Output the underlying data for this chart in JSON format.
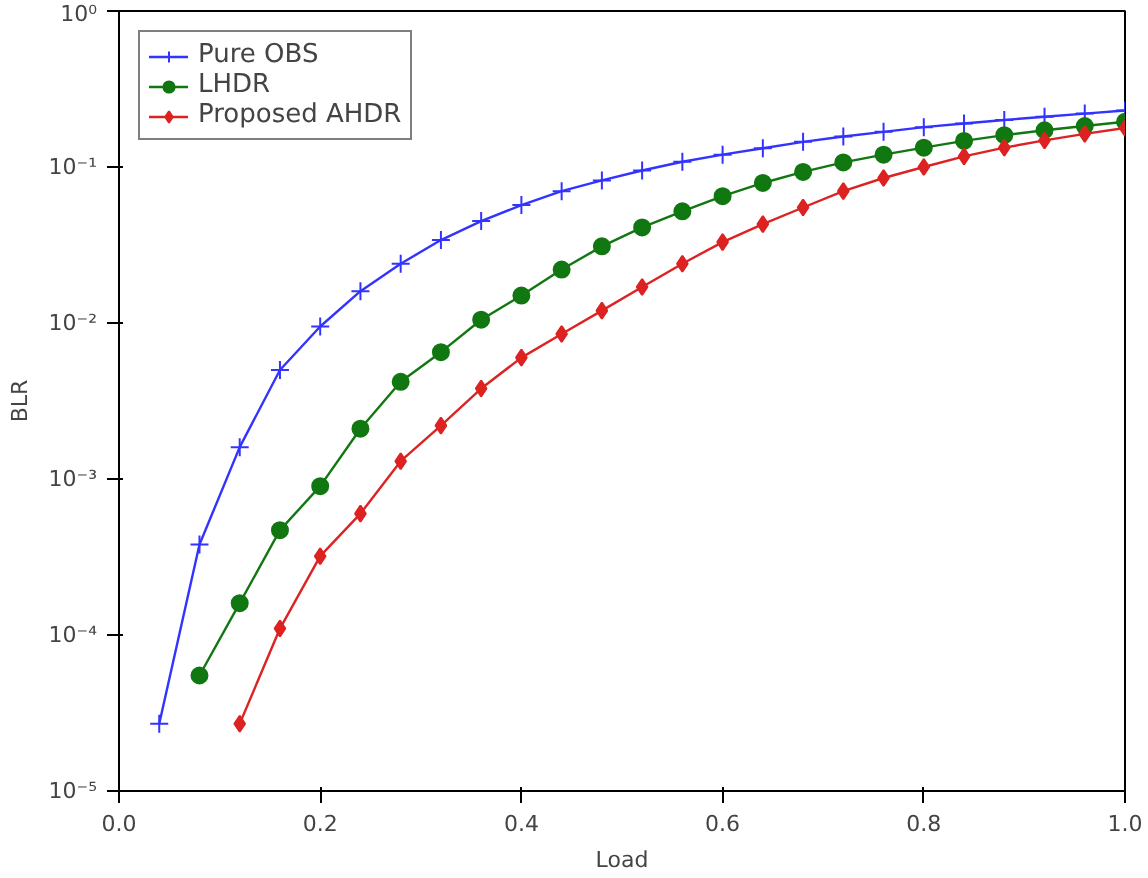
{
  "chart_data": {
    "type": "line",
    "xlabel": "Load",
    "ylabel": "BLR",
    "log": "y",
    "grid": false,
    "legend": "top left",
    "line_style": "solid",
    "xlim": [
      0.0,
      1.0
    ],
    "xticks": [
      {
        "value": 0,
        "label": "0.0"
      },
      0.2,
      0.4,
      0.6,
      0.8,
      {
        "value": 1,
        "label": "1.0"
      }
    ],
    "ylim": [
      1e-05,
      1
    ],
    "yticks": [
      {
        "value": 1e-05,
        "label": "10⁻⁵"
      },
      {
        "value": 0.0001,
        "label": "10⁻⁴"
      },
      {
        "value": 0.001,
        "label": "10⁻³"
      },
      {
        "value": 0.01,
        "label": "10⁻²"
      },
      {
        "value": 0.1,
        "label": "10⁻¹"
      },
      {
        "value": 1,
        "label": "10⁰"
      }
    ],
    "series": [
      {
        "name": "Pure OBS",
        "color": "#3333ff",
        "marker": "cross",
        "x": [
          0.04,
          0.08,
          0.12,
          0.16,
          0.2,
          0.24,
          0.28,
          0.32,
          0.36,
          0.4,
          0.44,
          0.48,
          0.52,
          0.56,
          0.6,
          0.64,
          0.68,
          0.72,
          0.76,
          0.8,
          0.84,
          0.88,
          0.92,
          0.96,
          1.0
        ],
        "values": [
          2.7e-05,
          0.00038,
          0.0016,
          0.005,
          0.0095,
          0.016,
          0.024,
          0.034,
          0.045,
          0.057,
          0.07,
          0.082,
          0.095,
          0.108,
          0.12,
          0.132,
          0.145,
          0.157,
          0.168,
          0.18,
          0.19,
          0.2,
          0.21,
          0.22,
          0.23
        ]
      },
      {
        "name": "LHDR",
        "color": "#117711",
        "marker": "circle",
        "x": [
          0.08,
          0.12,
          0.16,
          0.2,
          0.24,
          0.28,
          0.32,
          0.36,
          0.4,
          0.44,
          0.48,
          0.52,
          0.56,
          0.6,
          0.64,
          0.68,
          0.72,
          0.76,
          0.8,
          0.84,
          0.88,
          0.92,
          0.96,
          1.0
        ],
        "values": [
          5.5e-05,
          0.00016,
          0.00047,
          0.0009,
          0.0021,
          0.0042,
          0.0065,
          0.0105,
          0.015,
          0.022,
          0.031,
          0.041,
          0.052,
          0.065,
          0.079,
          0.093,
          0.107,
          0.12,
          0.133,
          0.147,
          0.16,
          0.172,
          0.183,
          0.195
        ]
      },
      {
        "name": "Proposed AHDR",
        "color": "#dd2222",
        "marker": "diamond",
        "x": [
          0.12,
          0.16,
          0.2,
          0.24,
          0.28,
          0.32,
          0.36,
          0.4,
          0.44,
          0.48,
          0.52,
          0.56,
          0.6,
          0.64,
          0.68,
          0.72,
          0.76,
          0.8,
          0.84,
          0.88,
          0.92,
          0.96,
          1.0
        ],
        "values": [
          2.7e-05,
          0.00011,
          0.00032,
          0.0006,
          0.0013,
          0.0022,
          0.0038,
          0.006,
          0.0085,
          0.012,
          0.017,
          0.024,
          0.033,
          0.043,
          0.055,
          0.07,
          0.085,
          0.1,
          0.117,
          0.133,
          0.148,
          0.163,
          0.178
        ]
      }
    ]
  }
}
